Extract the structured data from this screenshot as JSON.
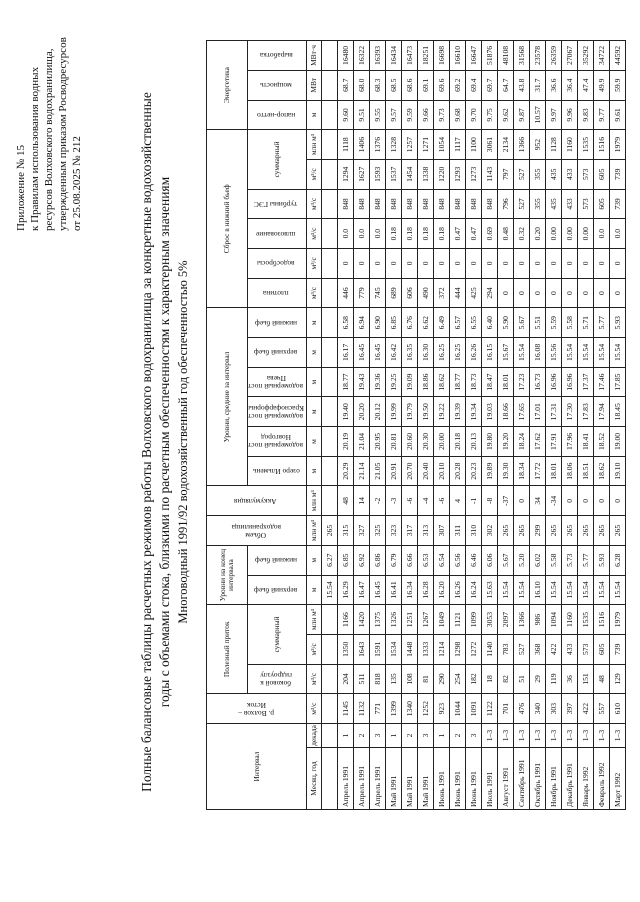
{
  "appendix": {
    "title": "Приложение № 15",
    "lines": [
      "к Правилам использования водных",
      "ресурсов Волховского водохранилища,",
      "утвержденным приказом Росводресурсов",
      "от 25.08.2025 № 212"
    ]
  },
  "title": {
    "lines": [
      "Полные балансовые таблицы расчетных режимов работы Волховского водохранилища за конкретные водохозяйственные",
      "годы с объемами стока, близкими по расчетным обеспеченностям к характерным значениям",
      "Многоводный 1991/92 водохозяйственный год обеспеченностью 5%"
    ]
  },
  "table": {
    "header": {
      "interval": "Интервал",
      "volkhov": "р. Волхов – Исток",
      "useful_inflow": "Полезный приток",
      "levels_end": "Уровни на конец интервала",
      "volume": "Объем водохранилища",
      "accumulation": "Аккумуляция",
      "levels_avg": "Уровни, средние за интервал",
      "discharge": "Сброс в нижний бьеф",
      "energy": "Энергетика",
      "sub": [
        "боковой к гидроузлу",
        "суммарный",
        "верхний бьеф",
        "нижний бьеф",
        "озеро Ильмень",
        "водомерный пост Новгород",
        "водомерный пост Краснофарфорный",
        "водомерный пост Пчева",
        "верхний бьеф",
        "нижний бьеф",
        "плотина",
        "водосбросы",
        "шлюзование",
        "турбины ГЭС",
        "суммарный",
        "напор-нетто",
        "мощность",
        "выработка"
      ],
      "units": [
        "Месяц, год",
        "декада",
        "м³/с",
        "м³/с",
        "м³/с",
        "млн м³",
        "м",
        "м",
        "млн м³",
        "млн м³",
        "м",
        "м",
        "м",
        "м",
        "м",
        "м",
        "м³/с",
        "м³/с",
        "м³/с",
        "м³/с",
        "м³/с",
        "млн м³",
        "м",
        "МВт",
        "МВт·ч"
      ]
    },
    "initial_row": [
      "15.54",
      "6.27",
      "265"
    ],
    "rows": [
      [
        "Апрель 1991",
        "1",
        "1145",
        "204",
        "1350",
        "1166",
        "16.29",
        "6.85",
        "315",
        "48",
        "20.29",
        "20.19",
        "19.40",
        "18.77",
        "16.17",
        "6.58",
        "446",
        "0",
        "0.0",
        "848",
        "1294",
        "1118",
        "9.60",
        "68.7",
        "16480"
      ],
      [
        "Апрель 1991",
        "2",
        "1132",
        "511",
        "1643",
        "1420",
        "16.47",
        "6.92",
        "327",
        "14",
        "21.14",
        "21.04",
        "20.20",
        "19.43",
        "16.45",
        "6.94",
        "779",
        "0",
        "0.0",
        "848",
        "1627",
        "1406",
        "9.51",
        "68.0",
        "16322"
      ],
      [
        "Апрель 1991",
        "3",
        "771",
        "818",
        "1591",
        "1375",
        "16.45",
        "6.86",
        "325",
        "-2",
        "21.05",
        "20.95",
        "20.12",
        "19.36",
        "16.45",
        "6.90",
        "745",
        "0",
        "0.0",
        "848",
        "1593",
        "1376",
        "9.55",
        "68.3",
        "16393"
      ],
      [
        "Май 1991",
        "1",
        "1399",
        "135",
        "1534",
        "1326",
        "16.41",
        "6.79",
        "323",
        "-3",
        "20.91",
        "20.81",
        "19.99",
        "19.25",
        "16.42",
        "6.85",
        "689",
        "0",
        "0.18",
        "848",
        "1537",
        "1328",
        "9.57",
        "68.5",
        "16434"
      ],
      [
        "Май 1991",
        "2",
        "1340",
        "108",
        "1448",
        "1251",
        "16.34",
        "6.66",
        "317",
        "-6",
        "20.70",
        "20.60",
        "19.79",
        "19.09",
        "16.35",
        "6.76",
        "606",
        "0",
        "0.18",
        "848",
        "1454",
        "1257",
        "9.59",
        "68.6",
        "16473"
      ],
      [
        "Май 1991",
        "3",
        "1252",
        "81",
        "1333",
        "1267",
        "16.28",
        "6.53",
        "313",
        "-4",
        "20.40",
        "20.30",
        "19.50",
        "18.86",
        "16.30",
        "6.62",
        "490",
        "0",
        "0.18",
        "848",
        "1338",
        "1271",
        "9.66",
        "69.1",
        "18251"
      ],
      [
        "Июнь 1991",
        "1",
        "923",
        "290",
        "1214",
        "1049",
        "16.20",
        "6.54",
        "307",
        "-6",
        "20.10",
        "20.00",
        "19.22",
        "18.62",
        "16.25",
        "6.49",
        "372",
        "0",
        "0.18",
        "848",
        "1220",
        "1054",
        "9.73",
        "69.6",
        "16698"
      ],
      [
        "Июнь 1991",
        "2",
        "1044",
        "254",
        "1298",
        "1121",
        "16.26",
        "6.56",
        "311",
        "4",
        "20.28",
        "20.18",
        "19.39",
        "18.77",
        "16.25",
        "6.57",
        "444",
        "0",
        "0.47",
        "848",
        "1293",
        "1117",
        "9.68",
        "69.2",
        "16610"
      ],
      [
        "Июнь 1991",
        "3",
        "1091",
        "182",
        "1272",
        "1099",
        "16.24",
        "6.46",
        "310",
        "-1",
        "20.23",
        "20.13",
        "19.34",
        "18.73",
        "16.26",
        "6.55",
        "425",
        "0",
        "0.47",
        "848",
        "1273",
        "1100",
        "9.70",
        "69.4",
        "16647"
      ],
      [
        "Июль 1991",
        "1–3",
        "1122",
        "18",
        "1140",
        "3053",
        "15.63",
        "6.06",
        "302",
        "-8",
        "19.89",
        "19.80",
        "19.03",
        "18.47",
        "16.15",
        "6.40",
        "294",
        "0",
        "0.69",
        "848",
        "1143",
        "3061",
        "9.75",
        "69.7",
        "51876"
      ],
      [
        "Август 1991",
        "1–3",
        "701",
        "82",
        "783",
        "2097",
        "15.54",
        "5.67",
        "265",
        "-37",
        "19.30",
        "19.20",
        "18.66",
        "18.01",
        "15.67",
        "5.90",
        "0",
        "0",
        "0.48",
        "796",
        "797",
        "2134",
        "9.62",
        "64.7",
        "48108"
      ],
      [
        "Сентябрь 1991",
        "1–3",
        "476",
        "51",
        "527",
        "1366",
        "15.54",
        "5.20",
        "265",
        "0",
        "18.34",
        "18.24",
        "17.65",
        "17.23",
        "15.54",
        "5.67",
        "0",
        "0",
        "0.32",
        "527",
        "527",
        "1366",
        "9.87",
        "43.8",
        "31568"
      ],
      [
        "Октябрь 1991",
        "1–3",
        "340",
        "29",
        "368",
        "986",
        "16.10",
        "6.02",
        "299",
        "34",
        "17.72",
        "17.62",
        "17.01",
        "16.73",
        "16.08",
        "5.51",
        "0",
        "0",
        "0.20",
        "355",
        "355",
        "952",
        "10.57",
        "31.7",
        "23578"
      ],
      [
        "Ноябрь 1991",
        "1–3",
        "303",
        "119",
        "422",
        "1094",
        "15.54",
        "5.58",
        "265",
        "-34",
        "18.01",
        "17.91",
        "17.31",
        "16.96",
        "15.56",
        "5.59",
        "0",
        "0",
        "0.00",
        "435",
        "435",
        "1128",
        "9.97",
        "36.6",
        "26359"
      ],
      [
        "Декабрь 1991",
        "1–3",
        "397",
        "36",
        "433",
        "1160",
        "15.54",
        "5.73",
        "265",
        "0",
        "18.06",
        "17.96",
        "17.30",
        "16.96",
        "15.54",
        "5.58",
        "0",
        "0",
        "0.00",
        "433",
        "433",
        "1160",
        "9.96",
        "36.4",
        "27067"
      ],
      [
        "Январь 1992",
        "1–3",
        "422",
        "151",
        "573",
        "1535",
        "15.54",
        "5.77",
        "265",
        "0",
        "18.51",
        "18.41",
        "17.83",
        "17.37",
        "15.54",
        "5.71",
        "0",
        "0",
        "0.00",
        "573",
        "573",
        "1535",
        "9.83",
        "47.4",
        "35292"
      ],
      [
        "Февраль 1992",
        "1–3",
        "557",
        "48",
        "605",
        "1516",
        "15.54",
        "5.93",
        "265",
        "0",
        "18.62",
        "18.52",
        "17.94",
        "17.46",
        "15.54",
        "5.77",
        "0",
        "0",
        "0.0",
        "605",
        "605",
        "1516",
        "9.77",
        "49.9",
        "34722"
      ],
      [
        "Март 1992",
        "1–3",
        "610",
        "129",
        "739",
        "1979",
        "15.54",
        "6.28",
        "265",
        "0",
        "19.10",
        "19.00",
        "18.45",
        "17.85",
        "15.54",
        "5.93",
        "0",
        "0",
        "0.0",
        "739",
        "739",
        "1979",
        "9.61",
        "59.9",
        "44592"
      ]
    ]
  }
}
